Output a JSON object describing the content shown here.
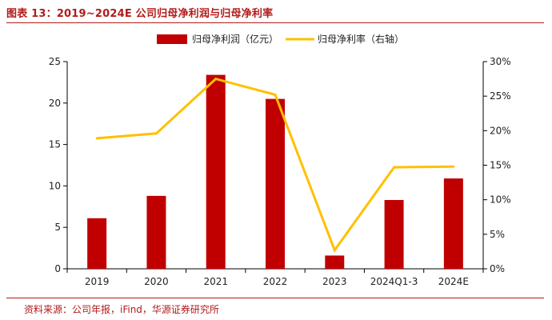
{
  "figure": {
    "title": "图表 13：2019~2024E 公司归母净利润与归母净利率",
    "source": "资料来源：公司年报，iFind，华源证券研究所"
  },
  "colors": {
    "bar": "#c00000",
    "line": "#ffc000",
    "accent": "#b31a1a",
    "axis": "#000000"
  },
  "chart_data": {
    "type": "bar",
    "title": "",
    "categories": [
      "2019",
      "2020",
      "2021",
      "2022",
      "2023",
      "2024Q1-3",
      "2024E"
    ],
    "series": [
      {
        "name": "归母净利润（亿元）",
        "type": "bar",
        "axis": "left",
        "values": [
          6.1,
          8.8,
          23.4,
          20.5,
          1.6,
          8.3,
          10.9
        ]
      },
      {
        "name": "归母净利率（右轴）",
        "type": "line",
        "axis": "right",
        "values": [
          18.9,
          19.6,
          27.5,
          25.2,
          2.7,
          14.7,
          14.8
        ]
      }
    ],
    "left_axis": {
      "ylim": [
        0,
        25
      ],
      "ticks": [
        "0",
        "5",
        "10",
        "15",
        "20",
        "25"
      ]
    },
    "right_axis": {
      "ylim": [
        0,
        30
      ],
      "ticks": [
        "0%",
        "5%",
        "10%",
        "15%",
        "20%",
        "25%",
        "30%"
      ]
    },
    "legend_position": "top",
    "grid": false
  }
}
